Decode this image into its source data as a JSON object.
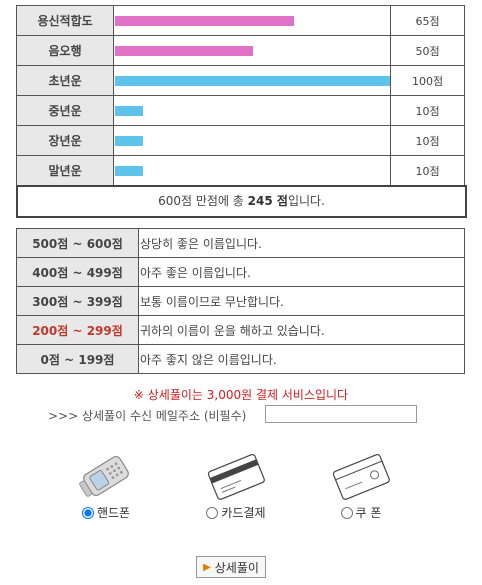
{
  "scores": [
    {
      "label": "용신적합도",
      "value": "65점",
      "fraction": 0.65,
      "color": "#e070c8"
    },
    {
      "label": "음오행",
      "value": "50점",
      "fraction": 0.5,
      "color": "#e070c8"
    },
    {
      "label": "초년운",
      "value": "100점",
      "fraction": 1.0,
      "color": "#5ec3ea"
    },
    {
      "label": "중년운",
      "value": "10점",
      "fraction": 0.1,
      "color": "#5ec3ea"
    },
    {
      "label": "장년운",
      "value": "10점",
      "fraction": 0.1,
      "color": "#5ec3ea"
    },
    {
      "label": "말년운",
      "value": "10점",
      "fraction": 0.1,
      "color": "#5ec3ea"
    }
  ],
  "total": {
    "prefix": "600점 만점에 총 ",
    "score": "245 점",
    "suffix": "입니다."
  },
  "ranges": [
    {
      "range": "500점 ~ 600점",
      "desc": "상당히 좋은 이름입니다."
    },
    {
      "range": "400점 ~ 499점",
      "desc": "아주 좋은 이름입니다."
    },
    {
      "range": "300점 ~ 399점",
      "desc": "보통 이름이므로 무난합니다."
    },
    {
      "range": "200점 ~ 299점",
      "desc": "귀하의 이름이 운을 해하고 있습니다."
    },
    {
      "range": "0점 ~ 199점",
      "desc": "아주 좋지 않은 이름입니다."
    }
  ],
  "notice": "※ 상세풀이는 3,000원 결제 서비스입니다",
  "email": {
    "label": ">>> 상세풀이 수신 메일주소 (비필수)",
    "value": ""
  },
  "payment": {
    "phone": "핸드폰",
    "card": "카드결제",
    "coupon": "쿠 폰"
  },
  "detail_button": "상세풀이"
}
